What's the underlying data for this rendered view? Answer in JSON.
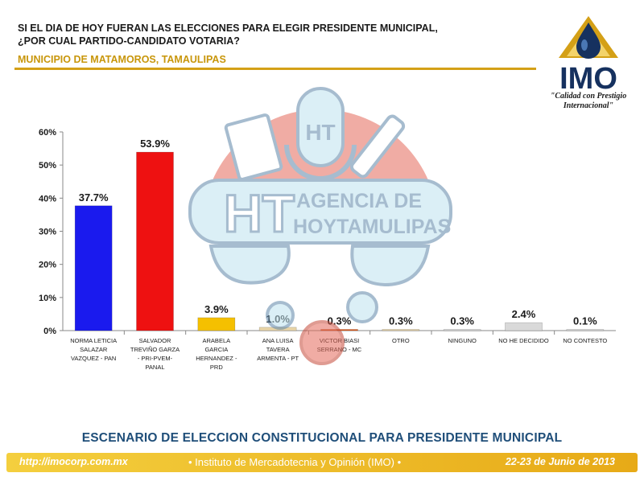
{
  "header": {
    "question_line1": "SI EL DIA DE HOY FUERAN LAS ELECCIONES PARA ELEGIR PRESIDENTE MUNICIPAL,",
    "question_line2": "¿POR CUAL PARTIDO-CANDIDATO VOTARIA?",
    "subtitle": "MUNICIPIO DE MATAMOROS, TAMAULIPAS"
  },
  "logo": {
    "wordmark": "IMO",
    "tagline_line1": "\"Calidad con Prestigio",
    "tagline_line2": "Internacional\""
  },
  "watermark": {
    "monogram": "HT",
    "line1": "AGENCIA DE",
    "line2": "HOYTAMULIPAS"
  },
  "chart_data": {
    "type": "bar",
    "categories": [
      [
        "NORMA LETICIA",
        "SALAZAR",
        "VAZQUEZ - PAN"
      ],
      [
        "SALVADOR",
        "TREVIÑO GARZA",
        "- PRI-PVEM-",
        "PANAL"
      ],
      [
        "ARABELA",
        "GARCIA",
        "HERNANDEZ -",
        "PRD"
      ],
      [
        "ANA LUISA",
        "TAVERA",
        "ARMENTA - PT"
      ],
      [
        "VICTOR BIASI",
        "SERRANO - MC"
      ],
      [
        "OTRO"
      ],
      [
        "NINGUNO"
      ],
      [
        "NO HE DECIDIDO"
      ],
      [
        "NO CONTESTO"
      ]
    ],
    "values": [
      37.7,
      53.9,
      3.9,
      1.0,
      0.3,
      0.3,
      0.3,
      2.4,
      0.1
    ],
    "value_labels": [
      "37.7%",
      "53.9%",
      "3.9%",
      "1.0%",
      "0.3%",
      "0.3%",
      "0.3%",
      "2.4%",
      "0.1%"
    ],
    "colors": [
      "#1a1aee",
      "#ee1111",
      "#f5c000",
      "#e9d5a8",
      "#e65c1a",
      "#e9d5a8",
      "#d9d9d9",
      "#d9d9d9",
      "#d9d9d9"
    ],
    "yticks": [
      "0%",
      "10%",
      "20%",
      "30%",
      "40%",
      "50%",
      "60%"
    ],
    "ylim": [
      0,
      60
    ],
    "title": "",
    "xlabel": "",
    "ylabel": "",
    "grid": false
  },
  "footer": {
    "title": "ESCENARIO DE ELECCION CONSTITUCIONAL PARA PRESIDENTE MUNICIPAL",
    "url": "http://imocorp.com.mx",
    "institute": "• Instituto de Mercadotecnia y Opinión (IMO) •",
    "date": "22-23 de Junio de 2013"
  },
  "colors": {
    "accent_gold": "#d4a017",
    "subtitle_gold": "#c8960a",
    "footer_title_blue": "#1f4e79",
    "logo_navy": "#16315f"
  }
}
